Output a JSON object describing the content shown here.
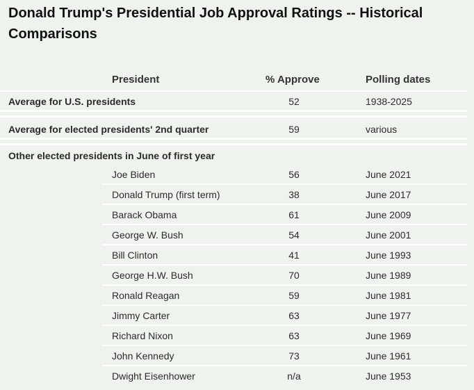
{
  "title": "Donald Trump's Presidential Job Approval Ratings -- Historical Comparisons",
  "columns": {
    "president": "President",
    "approve": "% Approve",
    "dates": "Polling dates"
  },
  "summary": [
    {
      "label": "Average for U.S. presidents",
      "approve": "52",
      "dates": "1938-2025"
    },
    {
      "label": "Average for elected presidents' 2nd quarter",
      "approve": "59",
      "dates": "various"
    }
  ],
  "group_label": "Other elected presidents in June of first year",
  "rows": [
    {
      "name": "Joe Biden",
      "approve": "56",
      "dates": "June 2021"
    },
    {
      "name": "Donald Trump (first term)",
      "approve": "38",
      "dates": "June 2017"
    },
    {
      "name": "Barack Obama",
      "approve": "61",
      "dates": "June 2009"
    },
    {
      "name": "George W. Bush",
      "approve": "54",
      "dates": "June 2001"
    },
    {
      "name": "Bill Clinton",
      "approve": "41",
      "dates": "June 1993"
    },
    {
      "name": "George H.W. Bush",
      "approve": "70",
      "dates": "June 1989"
    },
    {
      "name": "Ronald Reagan",
      "approve": "59",
      "dates": "June 1981"
    },
    {
      "name": "Jimmy Carter",
      "approve": "63",
      "dates": "June 1977"
    },
    {
      "name": "Richard Nixon",
      "approve": "63",
      "dates": "June 1969"
    },
    {
      "name": "John Kennedy",
      "approve": "73",
      "dates": "June 1961"
    },
    {
      "name": "Dwight Eisenhower",
      "approve": "n/a",
      "dates": "June 1953"
    }
  ]
}
